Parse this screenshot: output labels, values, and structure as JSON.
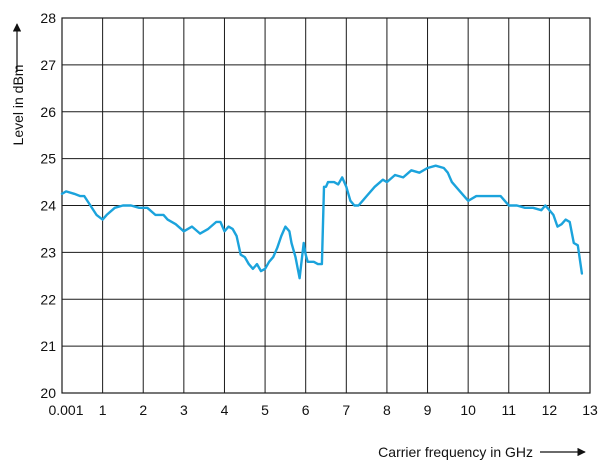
{
  "chart_data": {
    "type": "line",
    "title": "",
    "xlabel": "Carrier frequency in GHz",
    "ylabel": "Level in dBm",
    "xlim": [
      0,
      13
    ],
    "ylim": [
      20,
      28
    ],
    "grid": true,
    "legend": "none",
    "x_ticks": [
      {
        "value": 0,
        "label": "0.001"
      },
      {
        "value": 1,
        "label": "1"
      },
      {
        "value": 2,
        "label": "2"
      },
      {
        "value": 3,
        "label": "3"
      },
      {
        "value": 4,
        "label": "4"
      },
      {
        "value": 5,
        "label": "5"
      },
      {
        "value": 6,
        "label": "6"
      },
      {
        "value": 7,
        "label": "7"
      },
      {
        "value": 8,
        "label": "8"
      },
      {
        "value": 9,
        "label": "9"
      },
      {
        "value": 10,
        "label": "10"
      },
      {
        "value": 11,
        "label": "11"
      },
      {
        "value": 12,
        "label": "12"
      },
      {
        "value": 13,
        "label": "13"
      }
    ],
    "y_ticks": [
      {
        "value": 20,
        "label": "20"
      },
      {
        "value": 21,
        "label": "21"
      },
      {
        "value": 22,
        "label": "22"
      },
      {
        "value": 23,
        "label": "23"
      },
      {
        "value": 24,
        "label": "24"
      },
      {
        "value": 25,
        "label": "25"
      },
      {
        "value": 26,
        "label": "26"
      },
      {
        "value": 27,
        "label": "27"
      },
      {
        "value": 28,
        "label": "28"
      }
    ],
    "series": [
      {
        "color": "#1ba3dc",
        "x": [
          0.001,
          0.1,
          0.3,
          0.45,
          0.55,
          0.7,
          0.85,
          1.0,
          1.1,
          1.3,
          1.5,
          1.7,
          1.9,
          2.1,
          2.3,
          2.5,
          2.6,
          2.8,
          3.0,
          3.2,
          3.4,
          3.6,
          3.8,
          3.9,
          4.0,
          4.1,
          4.2,
          4.3,
          4.4,
          4.5,
          4.6,
          4.7,
          4.8,
          4.9,
          5.0,
          5.1,
          5.2,
          5.3,
          5.4,
          5.5,
          5.6,
          5.65,
          5.75,
          5.85,
          5.95,
          6.0,
          6.05,
          6.1,
          6.2,
          6.3,
          6.4,
          6.45,
          6.5,
          6.55,
          6.6,
          6.7,
          6.8,
          6.9,
          7.0,
          7.1,
          7.2,
          7.3,
          7.4,
          7.5,
          7.7,
          7.9,
          8.0,
          8.2,
          8.4,
          8.6,
          8.8,
          9.0,
          9.2,
          9.4,
          9.5,
          9.6,
          9.8,
          10.0,
          10.2,
          10.4,
          10.6,
          10.8,
          11.0,
          11.2,
          11.4,
          11.6,
          11.8,
          11.9,
          12.0,
          12.1,
          12.2,
          12.3,
          12.4,
          12.5,
          12.6,
          12.7,
          12.8
        ],
        "y": [
          24.25,
          24.3,
          24.25,
          24.2,
          24.2,
          24.0,
          23.8,
          23.7,
          23.8,
          23.95,
          24.0,
          24.0,
          23.95,
          23.95,
          23.8,
          23.8,
          23.7,
          23.6,
          23.45,
          23.55,
          23.4,
          23.5,
          23.65,
          23.65,
          23.45,
          23.55,
          23.5,
          23.35,
          22.95,
          22.9,
          22.75,
          22.65,
          22.75,
          22.6,
          22.65,
          22.8,
          22.9,
          23.1,
          23.35,
          23.55,
          23.45,
          23.2,
          22.9,
          22.45,
          23.2,
          22.95,
          22.8,
          22.8,
          22.8,
          22.75,
          22.75,
          24.4,
          24.4,
          24.5,
          24.5,
          24.5,
          24.45,
          24.6,
          24.4,
          24.1,
          24.0,
          24.0,
          24.1,
          24.2,
          24.4,
          24.55,
          24.5,
          24.65,
          24.6,
          24.75,
          24.7,
          24.8,
          24.85,
          24.8,
          24.7,
          24.5,
          24.3,
          24.1,
          24.2,
          24.2,
          24.2,
          24.2,
          24.0,
          24.0,
          23.95,
          23.95,
          23.9,
          24.0,
          23.9,
          23.8,
          23.55,
          23.6,
          23.7,
          23.65,
          23.2,
          23.15,
          22.55
        ]
      }
    ]
  }
}
